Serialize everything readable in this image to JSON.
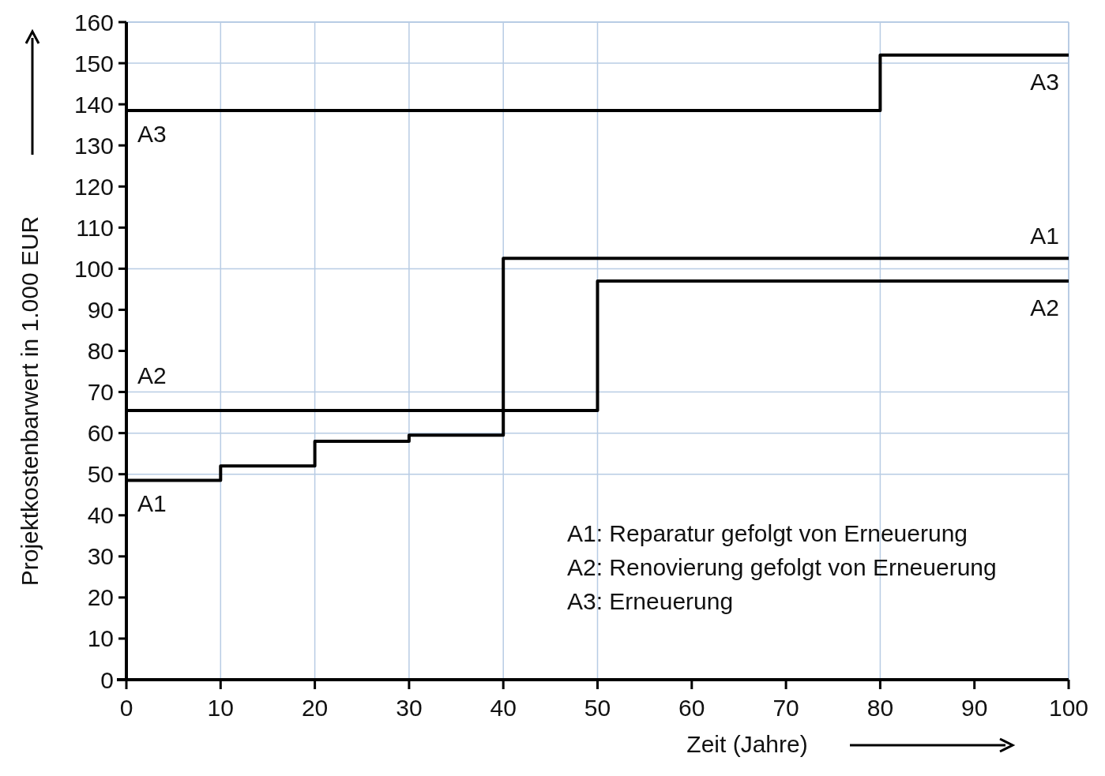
{
  "chart_data": {
    "type": "step",
    "xlabel": "Zeit (Jahre)",
    "ylabel": "Projektkostenbarwert in 1.000 EUR",
    "xlim": [
      0,
      100
    ],
    "xticks": [
      0,
      10,
      20,
      30,
      40,
      50,
      60,
      70,
      80,
      90,
      100
    ],
    "ylim": [
      0,
      160
    ],
    "yticks": [
      0,
      10,
      20,
      30,
      40,
      50,
      60,
      70,
      80,
      90,
      100,
      110,
      120,
      130,
      140,
      150,
      160
    ],
    "grid": false,
    "line_style": "solid",
    "marker": "none",
    "series": [
      {
        "name": "A1",
        "color": "#000000",
        "x": [
          0,
          10,
          20,
          30,
          40,
          100
        ],
        "values": [
          48.5,
          52,
          58,
          59.5,
          102.5,
          102.5
        ]
      },
      {
        "name": "A2",
        "color": "#000000",
        "x": [
          0,
          50,
          100
        ],
        "values": [
          65.5,
          97,
          97
        ]
      },
      {
        "name": "A3",
        "color": "#000000",
        "x": [
          0,
          80,
          100
        ],
        "values": [
          138.5,
          152,
          152
        ]
      }
    ],
    "ref_lines": [
      {
        "axis": "x",
        "value": 10,
        "color": "#b8cce4"
      },
      {
        "axis": "x",
        "value": 20,
        "color": "#b8cce4"
      },
      {
        "axis": "x",
        "value": 30,
        "color": "#b8cce4"
      },
      {
        "axis": "x",
        "value": 40,
        "color": "#b8cce4"
      },
      {
        "axis": "x",
        "value": 50,
        "color": "#b8cce4"
      },
      {
        "axis": "x",
        "value": 80,
        "color": "#b8cce4"
      },
      {
        "axis": "y",
        "value": 50,
        "color": "#b8cce4"
      },
      {
        "axis": "y",
        "value": 60,
        "color": "#b8cce4"
      },
      {
        "axis": "y",
        "value": 70,
        "color": "#b8cce4"
      },
      {
        "axis": "y",
        "value": 100,
        "color": "#b8cce4"
      },
      {
        "axis": "y",
        "value": 150,
        "color": "#b8cce4"
      }
    ],
    "annotations": [
      "A1: Reparatur gefolgt von Erneuerung",
      "A2: Renovierung gefolgt von Erneuerung",
      "A3: Erneuerung"
    ]
  }
}
